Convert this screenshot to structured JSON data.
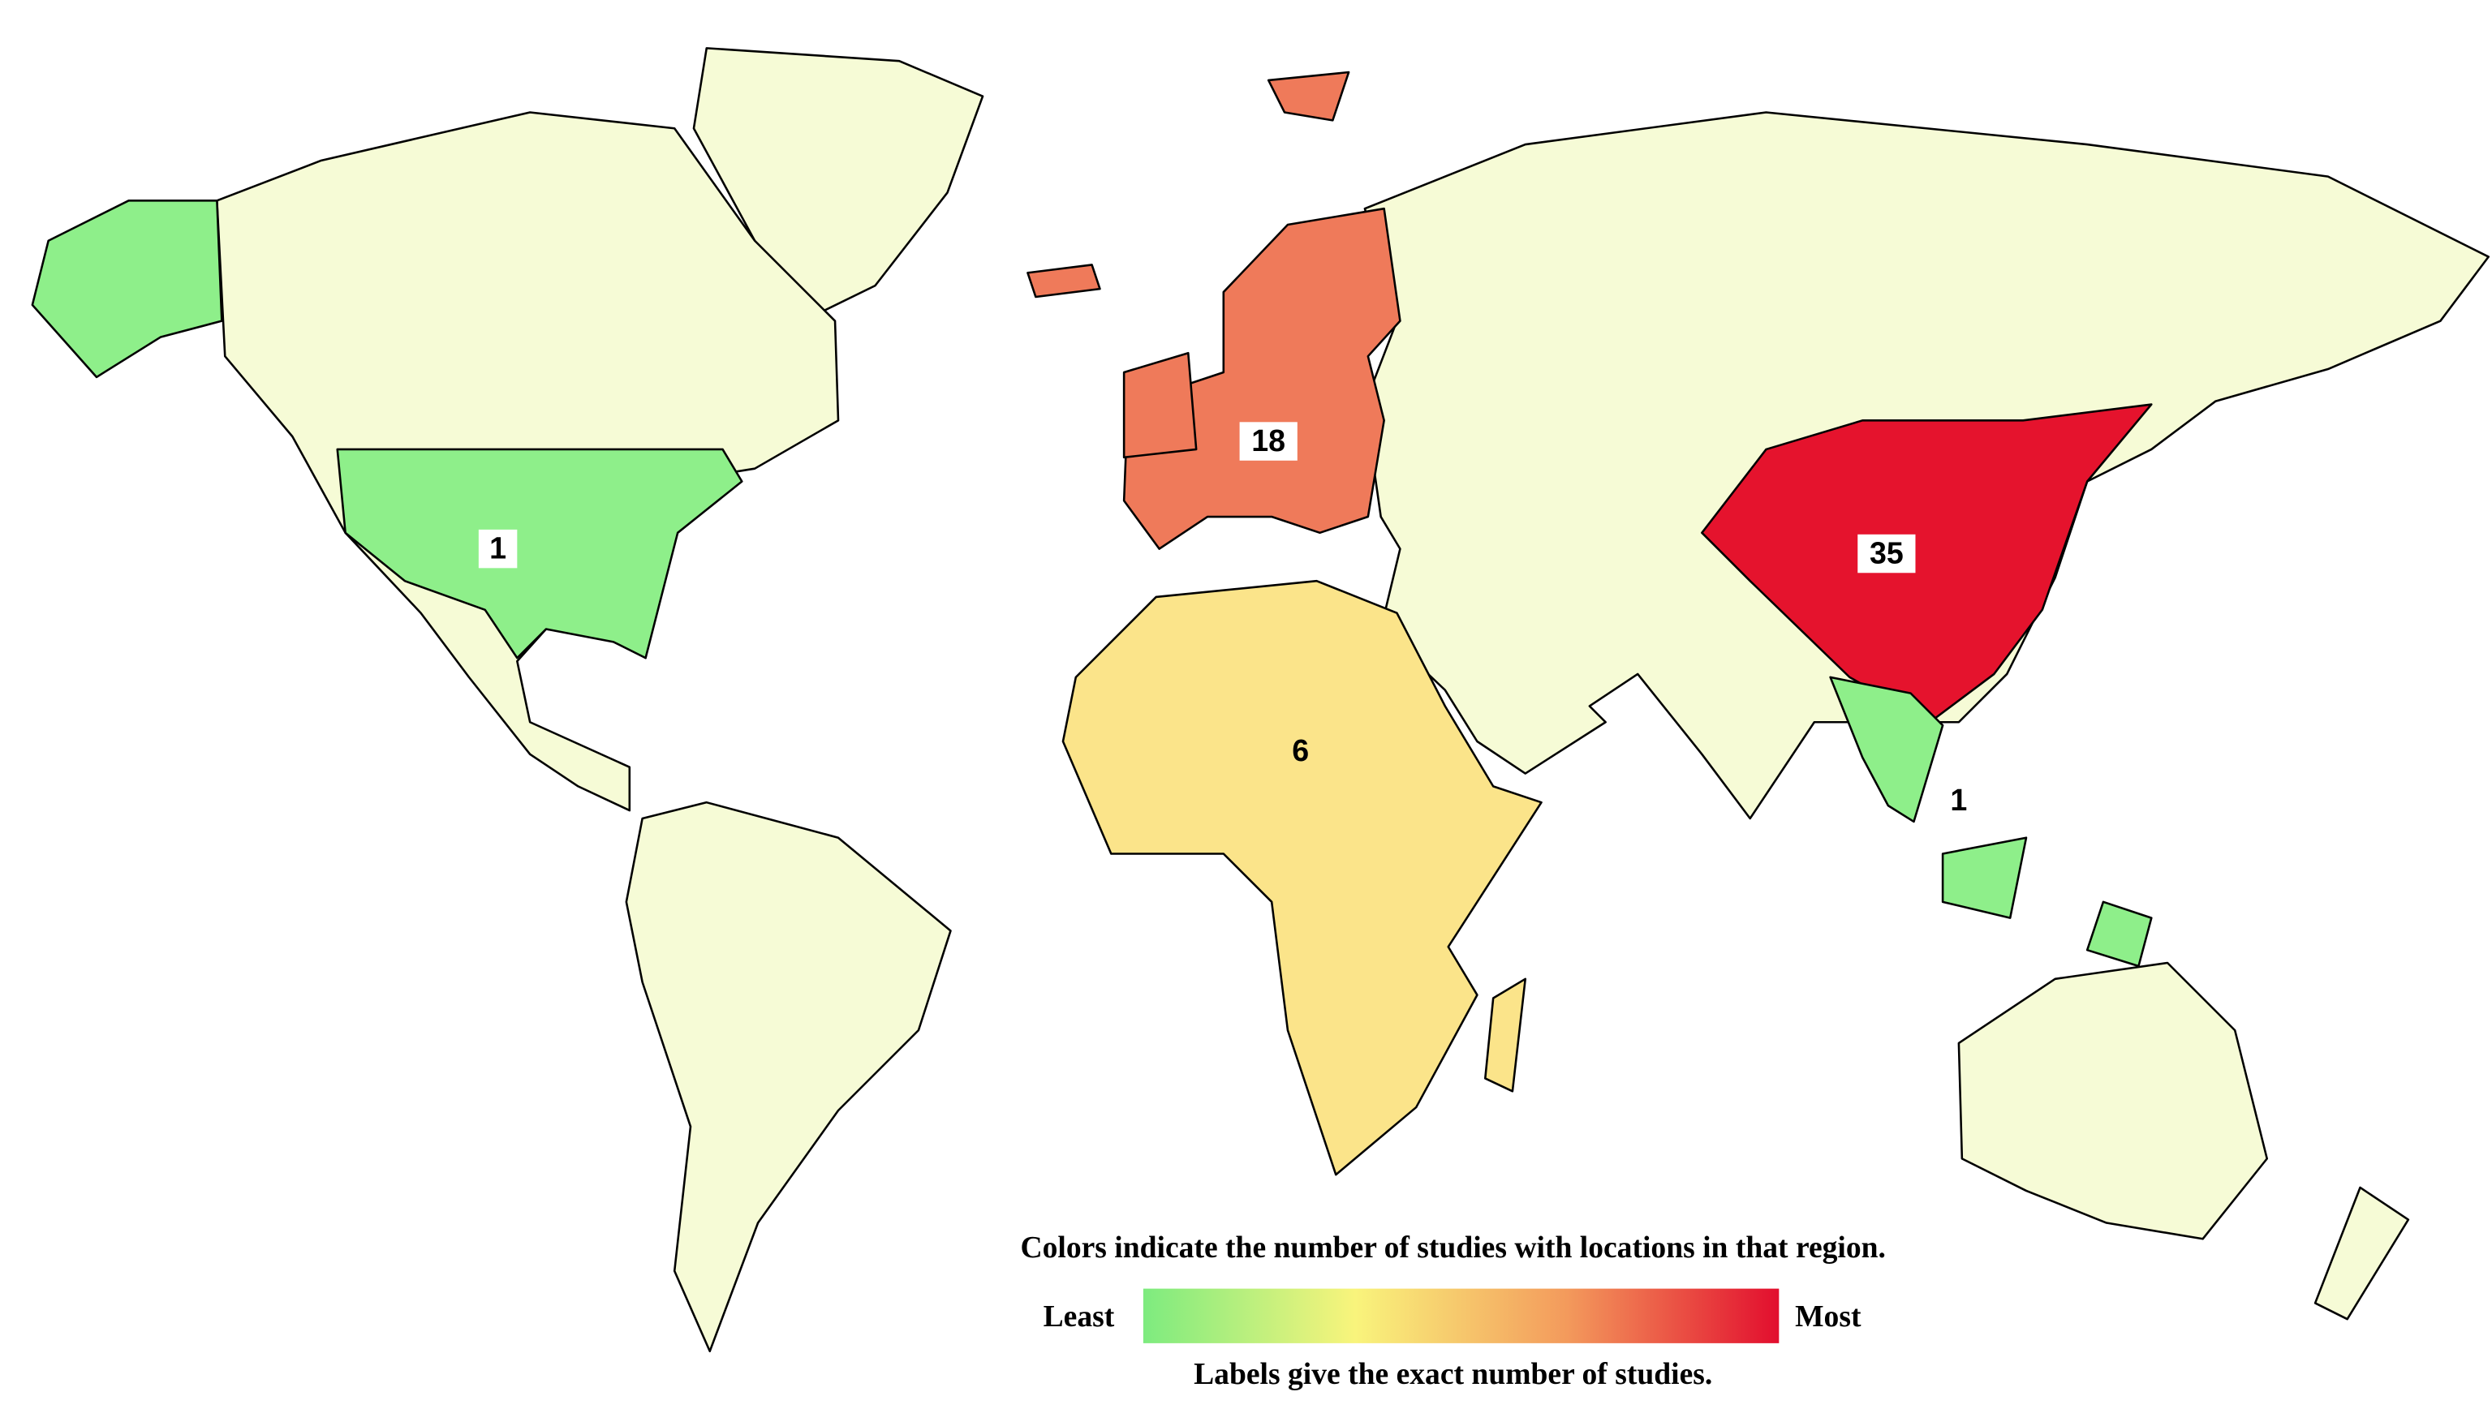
{
  "regions": [
    {
      "value": 1,
      "color": "#8eef8a"
    },
    {
      "value": 18,
      "color": "#ef7a5a"
    },
    {
      "value": 35,
      "color": "#e5132d"
    },
    {
      "value": 6,
      "color": "#fbe48a"
    },
    {
      "value": 1,
      "color": "#8eef8a"
    }
  ],
  "land_color": "#f6fbd6",
  "legend": {
    "title": "Colors indicate the number of studies with locations in that region.",
    "least": "Least",
    "most": "Most",
    "note": "Labels give the exact number of studies.",
    "colors": [
      "#7deb7f",
      "#f9f47c",
      "#f39a5c",
      "#e20e2e"
    ]
  }
}
